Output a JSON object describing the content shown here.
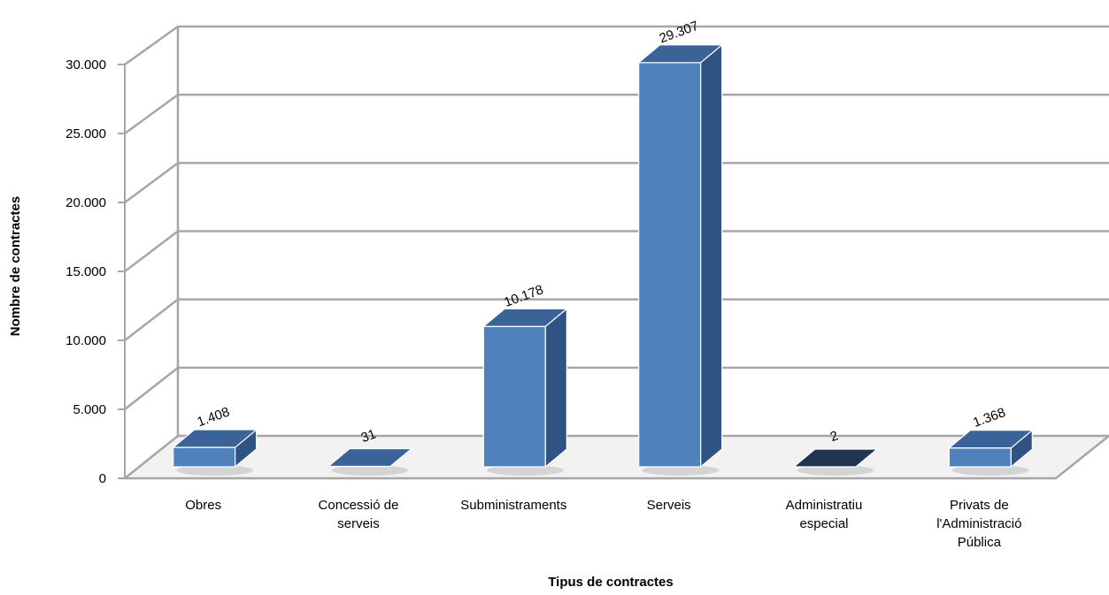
{
  "chart_data": {
    "type": "bar",
    "categories": [
      [
        "Obres"
      ],
      [
        "Concessió de",
        "serveis"
      ],
      [
        "Subministraments"
      ],
      [
        "Serveis"
      ],
      [
        "Administratiu",
        "especial"
      ],
      [
        "Privats de",
        "l'Administració",
        "Pública"
      ]
    ],
    "values": [
      1408,
      31,
      10178,
      29307,
      2,
      1368
    ],
    "data_labels": [
      "1.408",
      "31",
      "10.178",
      "29.307",
      "2",
      "1.368"
    ],
    "xlabel": "Tipus de contractes",
    "ylabel": "Nombre de contractes",
    "ylim": [
      0,
      30000
    ],
    "yticks": [
      0,
      5000,
      10000,
      15000,
      20000,
      25000,
      30000
    ],
    "ytick_labels": [
      "0",
      "5.000",
      "10.000",
      "15.000",
      "20.000",
      "25.000",
      "30.000"
    ],
    "grid": true,
    "legend": "none",
    "colors": {
      "bar_front": "#4f81bd",
      "bar_side": "#2f5483",
      "bar_top": "#3a6498",
      "bar_dark": "#1f3552",
      "grid": "#a6a6a6"
    }
  }
}
